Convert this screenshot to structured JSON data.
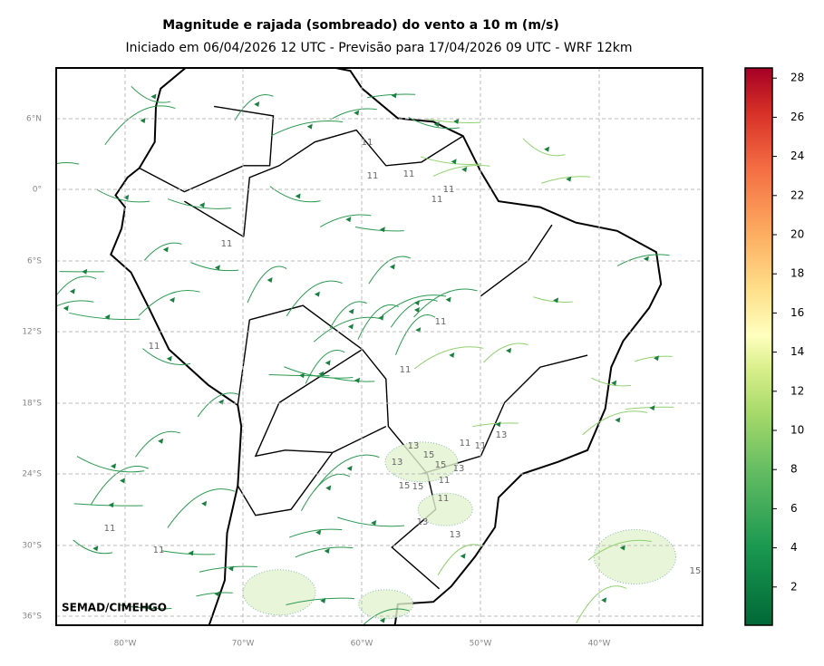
{
  "header": {
    "title": "Magnitude e rajada (sombreado) do vento a 10 m (m/s)",
    "subtitle": "Iniciado em 06/04/2026 12 UTC - Previsão para 17/04/2026 09 UTC - WRF 12km"
  },
  "map": {
    "lat_labels": [
      "6°N",
      "0°",
      "6°S",
      "12°S",
      "18°S",
      "24°S",
      "30°S",
      "36°S"
    ],
    "lon_labels": [
      "80°W",
      "70°W",
      "60°W",
      "50°W",
      "40°W"
    ],
    "watermark": "SEMAD/CIMEHGO",
    "contour_labels": [
      "11",
      "11",
      "11",
      "11",
      "11",
      "11",
      "11",
      "11",
      "13",
      "13",
      "15",
      "15",
      "13",
      "11",
      "13",
      "11",
      "11",
      "11",
      "13",
      "15",
      "15",
      "13",
      "11",
      "11",
      "11",
      "15"
    ]
  },
  "colorbar": {
    "ticks": [
      2,
      4,
      6,
      8,
      10,
      12,
      14,
      16,
      18,
      20,
      22,
      24,
      26,
      28
    ]
  }
}
